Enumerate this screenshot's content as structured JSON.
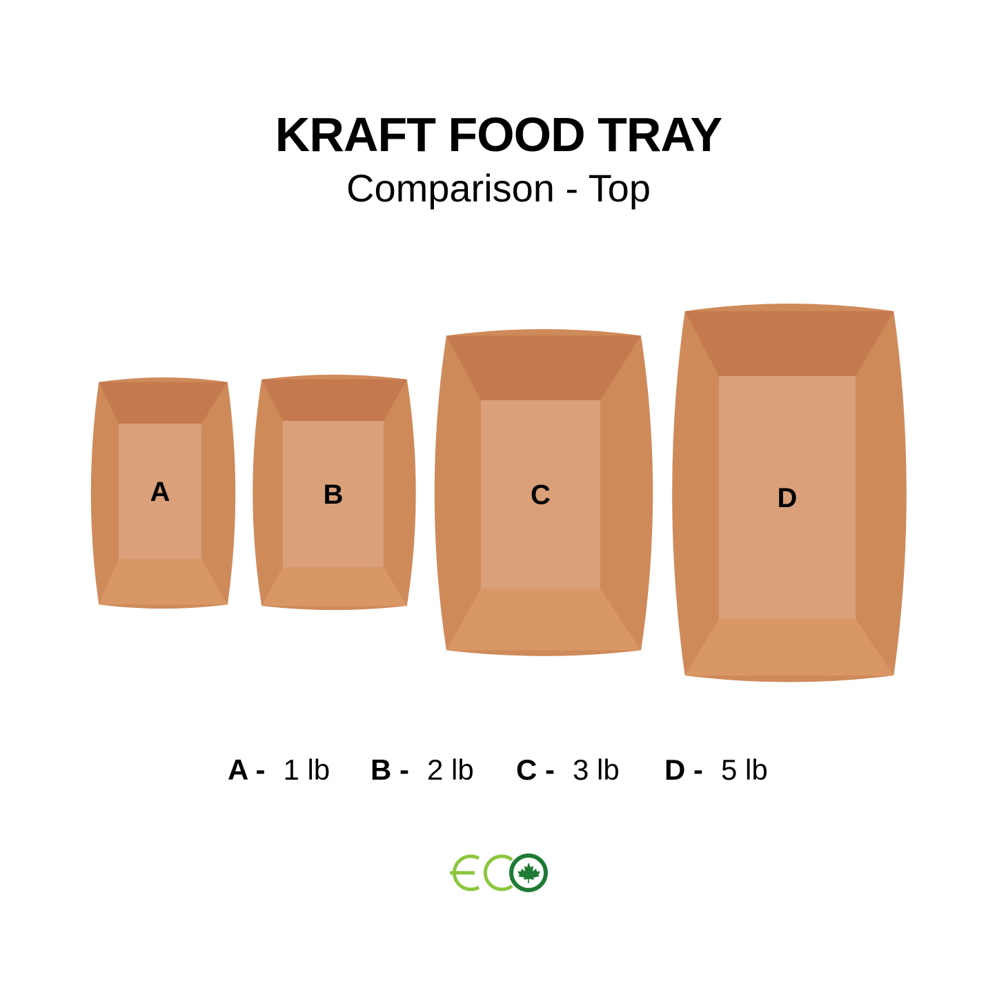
{
  "header": {
    "title": "KRAFT FOOD TRAY",
    "subtitle": "Comparison - Top"
  },
  "trays": [
    {
      "letter": "A",
      "size": "1 lb"
    },
    {
      "letter": "B",
      "size": "2 lb"
    },
    {
      "letter": "C",
      "size": "3 lb"
    },
    {
      "letter": "D",
      "size": "5 lb"
    }
  ],
  "legend": [
    {
      "letter": "A -",
      "size": "1 lb"
    },
    {
      "letter": "B -",
      "size": "2 lb"
    },
    {
      "letter": "C -",
      "size": "3 lb"
    },
    {
      "letter": "D -",
      "size": "5 lb"
    }
  ],
  "logo": {
    "text": "ECO",
    "icon": "maple-leaf-icon",
    "light_green": "#8cc63f",
    "dark_green": "#1e7a34"
  },
  "colors": {
    "kraft_wall_dark": "#c47a4e",
    "kraft_wall": "#cf8a5a",
    "kraft_floor": "#d9a07a",
    "kraft_wall_light": "#d99766"
  }
}
